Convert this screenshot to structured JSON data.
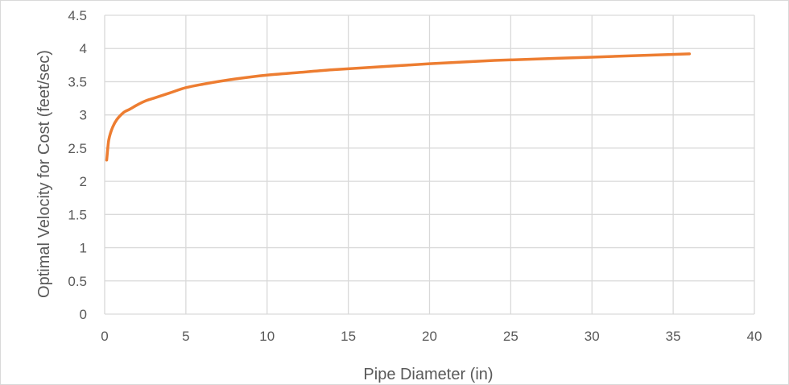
{
  "chart_data": {
    "type": "line",
    "title": "",
    "xlabel": "Pipe Diameter (in)",
    "ylabel": "Optimal Velocity for Cost (feet/sec)",
    "xlim": [
      0,
      40
    ],
    "ylim": [
      0,
      4.5
    ],
    "x_ticks": [
      "0",
      "5",
      "10",
      "15",
      "20",
      "25",
      "30",
      "35",
      "40"
    ],
    "y_ticks": [
      "0",
      "0.5",
      "1",
      "1.5",
      "2",
      "2.5",
      "3",
      "3.5",
      "4",
      "4.5"
    ],
    "grid": "on",
    "legend": "none",
    "series": [
      {
        "color": "#ED7D31",
        "x": [
          0.125,
          0.25,
          0.5,
          0.75,
          1,
          1.25,
          1.5,
          2,
          2.5,
          3,
          4,
          5,
          6,
          8,
          10,
          12,
          14,
          16,
          18,
          20,
          24,
          30,
          36
        ],
        "y": [
          2.32,
          2.62,
          2.82,
          2.93,
          3.0,
          3.05,
          3.08,
          3.15,
          3.21,
          3.25,
          3.33,
          3.41,
          3.46,
          3.54,
          3.6,
          3.64,
          3.68,
          3.71,
          3.74,
          3.77,
          3.82,
          3.87,
          3.92
        ]
      }
    ]
  }
}
